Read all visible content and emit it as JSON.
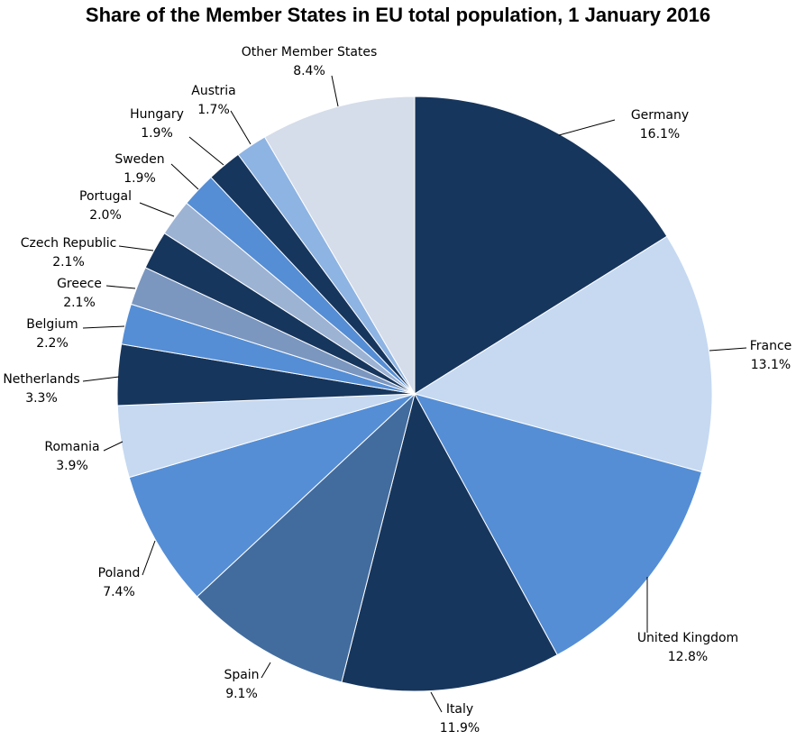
{
  "chart_data": {
    "type": "pie",
    "title": "Share of the Member States in EU total population, 1 January 2016",
    "slices": [
      {
        "label": "Germany",
        "value": 16.1,
        "value_label": "16.1%",
        "color": "#17365D"
      },
      {
        "label": "France",
        "value": 13.1,
        "value_label": "13.1%",
        "color": "#C6D9F1"
      },
      {
        "label": "United Kingdom",
        "value": 12.8,
        "value_label": "12.8%",
        "color": "#558ED5"
      },
      {
        "label": "Italy",
        "value": 11.9,
        "value_label": "11.9%",
        "color": "#17365D"
      },
      {
        "label": "Spain",
        "value": 9.1,
        "value_label": "9.1%",
        "color": "#426C9E"
      },
      {
        "label": "Poland",
        "value": 7.4,
        "value_label": "7.4%",
        "color": "#558ED5"
      },
      {
        "label": "Romania",
        "value": 3.9,
        "value_label": "3.9%",
        "color": "#C6D9F1"
      },
      {
        "label": "Netherlands",
        "value": 3.3,
        "value_label": "3.3%",
        "color": "#17365D"
      },
      {
        "label": "Belgium",
        "value": 2.2,
        "value_label": "2.2%",
        "color": "#558ED5"
      },
      {
        "label": "Greece",
        "value": 2.1,
        "value_label": "2.1%",
        "color": "#7B97C0"
      },
      {
        "label": "Czech Republic",
        "value": 2.1,
        "value_label": "2.1%",
        "color": "#17365D"
      },
      {
        "label": "Portugal",
        "value": 2.0,
        "value_label": "2.0%",
        "color": "#9DB3D4"
      },
      {
        "label": "Sweden",
        "value": 1.9,
        "value_label": "1.9%",
        "color": "#558ED5"
      },
      {
        "label": "Hungary",
        "value": 1.9,
        "value_label": "1.9%",
        "color": "#17365D"
      },
      {
        "label": "Austria",
        "value": 1.7,
        "value_label": "1.7%",
        "color": "#8EB4E3"
      },
      {
        "label": "Other Member States",
        "value": 8.4,
        "value_label": "8.4%",
        "color": "#D5DCEA"
      }
    ],
    "start": "12 o'clock",
    "direction": "clockwise",
    "legend": "none"
  }
}
